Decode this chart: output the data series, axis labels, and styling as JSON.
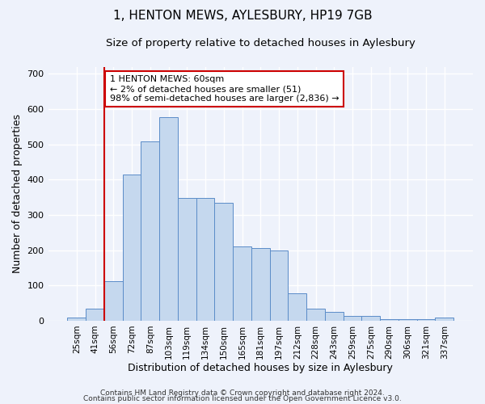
{
  "title": "1, HENTON MEWS, AYLESBURY, HP19 7GB",
  "subtitle": "Size of property relative to detached houses in Aylesbury",
  "xlabel": "Distribution of detached houses by size in Aylesbury",
  "ylabel": "Number of detached properties",
  "categories": [
    "25sqm",
    "41sqm",
    "56sqm",
    "72sqm",
    "87sqm",
    "103sqm",
    "119sqm",
    "134sqm",
    "150sqm",
    "165sqm",
    "181sqm",
    "197sqm",
    "212sqm",
    "228sqm",
    "243sqm",
    "259sqm",
    "275sqm",
    "290sqm",
    "306sqm",
    "321sqm",
    "337sqm"
  ],
  "values": [
    10,
    35,
    112,
    415,
    508,
    578,
    348,
    348,
    335,
    210,
    205,
    200,
    78,
    35,
    25,
    13,
    13,
    5,
    5,
    5,
    9
  ],
  "bar_color": "#c5d8ee",
  "bar_edge_color": "#5b8cc8",
  "vline_position": 1.5,
  "annotation_text": "1 HENTON MEWS: 60sqm\n← 2% of detached houses are smaller (51)\n98% of semi-detached houses are larger (2,836) →",
  "annotation_box_color": "white",
  "annotation_box_edge_color": "#cc0000",
  "vline_color": "#cc0000",
  "ylim": [
    0,
    720
  ],
  "yticks": [
    0,
    100,
    200,
    300,
    400,
    500,
    600,
    700
  ],
  "footer1": "Contains HM Land Registry data © Crown copyright and database right 2024.",
  "footer2": "Contains public sector information licensed under the Open Government Licence v3.0.",
  "background_color": "#eef2fb",
  "grid_color": "white",
  "title_fontsize": 11,
  "subtitle_fontsize": 9.5,
  "axis_label_fontsize": 9,
  "tick_fontsize": 7.5,
  "footer_fontsize": 6.5,
  "annotation_fontsize": 8
}
